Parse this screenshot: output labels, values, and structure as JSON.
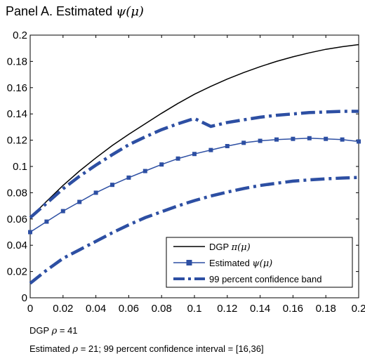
{
  "panel": {
    "title_prefix": "Panel A. Estimated ",
    "title_symbol": "ψ(μ)"
  },
  "notes": {
    "dgp_label": "DGP ",
    "dgp_rho": "ρ",
    "dgp_value": " = 41",
    "est_label": "Estimated ",
    "est_rho": "ρ",
    "est_value": " = 21; 99 percent confidence interval = [16,36]"
  },
  "chart_data": {
    "type": "line",
    "title": "Panel A. Estimated ψ(μ)",
    "xlabel": "",
    "ylabel": "",
    "xlim": [
      0,
      0.2
    ],
    "ylim": [
      0,
      0.2
    ],
    "xticks": [
      "0",
      "0.02",
      "0.04",
      "0.06",
      "0.08",
      "0.1",
      "0.12",
      "0.14",
      "0.16",
      "0.18",
      "0.2"
    ],
    "yticks": [
      "0",
      "0.02",
      "0.04",
      "0.06",
      "0.08",
      "0.1",
      "0.12",
      "0.14",
      "0.16",
      "0.18",
      "0.2"
    ],
    "grid": false,
    "legend_position": "bottom-right",
    "x": [
      0,
      0.01,
      0.02,
      0.03,
      0.04,
      0.05,
      0.06,
      0.07,
      0.08,
      0.09,
      0.1,
      0.11,
      0.12,
      0.13,
      0.14,
      0.15,
      0.16,
      0.17,
      0.18,
      0.19,
      0.2
    ],
    "series": [
      {
        "name": "DGP π(μ)",
        "legend_text": "DGP ",
        "legend_symbol": "π(μ)",
        "style": "solid",
        "color": "#000000",
        "values": [
          0.061,
          0.0735,
          0.0855,
          0.0965,
          0.1065,
          0.116,
          0.1245,
          0.1325,
          0.1405,
          0.148,
          0.155,
          0.161,
          0.1665,
          0.1715,
          0.176,
          0.18,
          0.1835,
          0.1865,
          0.1892,
          0.1912,
          0.1928
        ]
      },
      {
        "name": "Estimated ψ(μ)",
        "legend_text": "Estimated ",
        "legend_symbol": "ψ(μ)",
        "style": "solid-markers",
        "color": "#2d4fa3",
        "values": [
          0.05,
          0.058,
          0.066,
          0.073,
          0.08,
          0.086,
          0.0915,
          0.0965,
          0.1015,
          0.106,
          0.1095,
          0.1125,
          0.1155,
          0.118,
          0.1195,
          0.1205,
          0.121,
          0.1215,
          0.121,
          0.1205,
          0.119
        ]
      },
      {
        "name": "99 percent confidence band",
        "legend_text": "99 percent confidence band",
        "legend_symbol": "",
        "style": "dash-dot",
        "color": "#2d4fa3",
        "band_upper": [
          0.061,
          0.072,
          0.083,
          0.0925,
          0.101,
          0.109,
          0.1165,
          0.1225,
          0.128,
          0.1325,
          0.1365,
          0.1305,
          0.1335,
          0.1355,
          0.1375,
          0.139,
          0.14,
          0.141,
          0.1415,
          0.142,
          0.142
        ],
        "band_lower": [
          0.011,
          0.021,
          0.03,
          0.0365,
          0.043,
          0.0495,
          0.0555,
          0.061,
          0.0655,
          0.07,
          0.074,
          0.0775,
          0.0805,
          0.0832,
          0.0855,
          0.0872,
          0.0888,
          0.0898,
          0.0906,
          0.0912,
          0.0916
        ]
      }
    ]
  }
}
